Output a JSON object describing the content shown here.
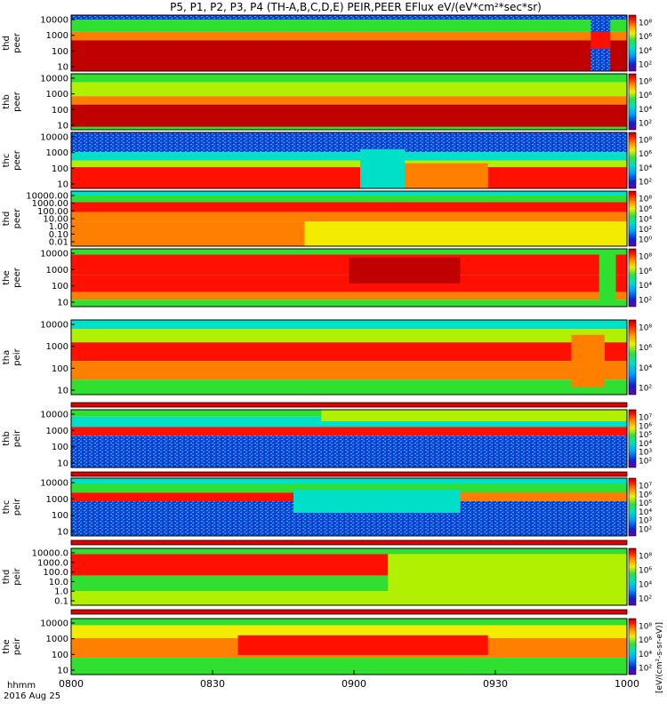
{
  "chart_data": {
    "type": "heatmap",
    "title": "P5, P1, P2, P3, P4 (TH-A,B,C,D,E) PEIR,PEER EFlux eV/(eV*cm²*sec*sr)",
    "x_ticks": [
      "0800",
      "0830",
      "0900",
      "0930",
      "1000"
    ],
    "x_footer": [
      "hhmm",
      "2016 Aug 25"
    ],
    "colorbar_label": "[eV/(cm²-s-sr-eV)]",
    "panels": [
      {
        "name1": "thd",
        "name2": "peer",
        "ylabels": [
          "10000",
          "1000",
          "100",
          "10"
        ],
        "cb": [
          "10⁸",
          "10⁶",
          "10⁴",
          "10²"
        ]
      },
      {
        "name1": "thb",
        "name2": "peer",
        "ylabels": [
          "10000",
          "1000",
          "100",
          "10"
        ],
        "cb": [
          "10⁸",
          "10⁶",
          "10⁴",
          "10²"
        ]
      },
      {
        "name1": "thc",
        "name2": "peer",
        "ylabels": [
          "10000",
          "1000",
          "100",
          "10"
        ],
        "cb": [
          "10⁸",
          "10⁶",
          "10⁴",
          "10²"
        ]
      },
      {
        "name1": "thd",
        "name2": "peer",
        "ylabels": [
          "10000.00",
          "1000.00",
          "100.00",
          "10.00",
          "1.00",
          "0.10",
          "0.01"
        ],
        "cb": [
          "10⁸",
          "10⁶",
          "10⁴",
          "10²",
          "10⁰"
        ]
      },
      {
        "name1": "the",
        "name2": "peer",
        "ylabels": [
          "10000",
          "1000",
          "100",
          "10"
        ],
        "cb": [
          "10⁸",
          "10⁶",
          "10⁴",
          "10²"
        ]
      },
      {
        "name1": "tha",
        "name2": "peir",
        "ylabels": [
          "10000",
          "1000",
          "100",
          "10"
        ],
        "cb": [
          "10⁸",
          "10⁶",
          "10⁴",
          "10²"
        ]
      },
      {
        "name1": "thb",
        "name2": "peir",
        "ylabels": [
          "10000",
          "1000",
          "100",
          "10"
        ],
        "cb": [
          "10⁷",
          "10⁶",
          "10⁵",
          "10⁴",
          "10³",
          "10²"
        ]
      },
      {
        "name1": "thc",
        "name2": "peir",
        "ylabels": [
          "10000",
          "1000",
          "100",
          "10"
        ],
        "cb": [
          "10⁷",
          "10⁶",
          "10⁵",
          "10⁴",
          "10³",
          "10²"
        ]
      },
      {
        "name1": "thd",
        "name2": "peir",
        "ylabels": [
          "10000.0",
          "1000.0",
          "100.0",
          "10.0",
          "1.0",
          "0.1"
        ],
        "cb": [
          "10⁸",
          "10⁶",
          "10⁴",
          "10²"
        ]
      },
      {
        "name1": "the",
        "name2": "peir",
        "ylabels": [
          "10000",
          "1000",
          "100",
          "10"
        ],
        "cb": [
          "10⁸",
          "10⁶",
          "10⁴",
          "10²"
        ]
      }
    ]
  }
}
